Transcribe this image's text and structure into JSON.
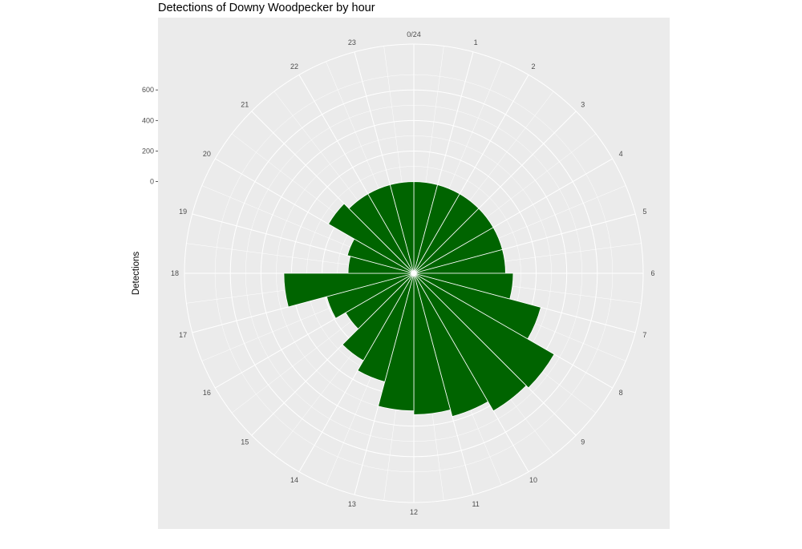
{
  "chart_data": {
    "type": "bar",
    "polar": true,
    "title": "Detections of Downy Woodpecker by hour",
    "xlabel": "",
    "ylabel": "Detections",
    "ylim": [
      -600,
      900
    ],
    "y_ticks": [
      0,
      200,
      400,
      600
    ],
    "grid": true,
    "categories": [
      "0/24",
      "1",
      "2",
      "3",
      "4",
      "5",
      "6",
      "7",
      "8",
      "9",
      "10",
      "11",
      "12",
      "13",
      "14",
      "15",
      "16",
      "17",
      "18",
      "19",
      "20",
      "21",
      "22",
      "23"
    ],
    "hours": [
      0,
      1,
      2,
      3,
      4,
      5,
      6,
      7,
      8,
      9,
      10,
      11,
      12,
      13,
      14,
      15,
      16,
      17,
      18,
      19,
      20,
      21,
      22,
      23
    ],
    "values": [
      0,
      0,
      0,
      0,
      0,
      0,
      50,
      260,
      460,
      440,
      370,
      325,
      300,
      135,
      60,
      -85,
      -10,
      250,
      -170,
      -150,
      45,
      0,
      0,
      0
    ],
    "colors": {
      "bar": "#006400",
      "panel": "#ebebeb",
      "grid": "#ffffff"
    }
  }
}
